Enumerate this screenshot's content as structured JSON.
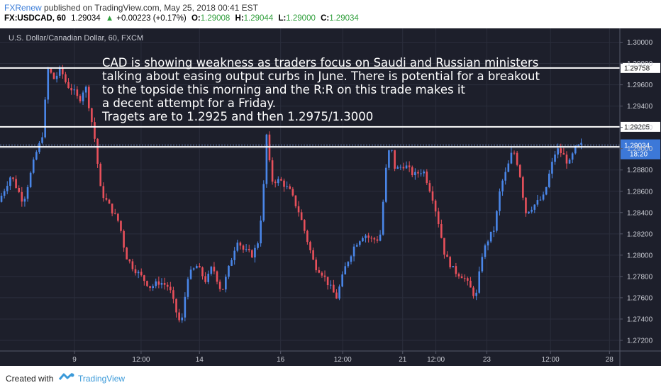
{
  "header": {
    "author": "FXRenew",
    "published_text": "published on TradingView.com, May 25, 2018 00:41 EST",
    "symbol_tf": "FX:USDCAD, 60",
    "last": "1.29034",
    "arrow": "▲",
    "change": "+0.00223 (+0.17%)",
    "o_label": "O:",
    "o_val": "1.29008",
    "h_label": "H:",
    "h_val": "1.29044",
    "l_label": "L:",
    "l_val": "1.29000",
    "c_label": "C:",
    "c_val": "1.29034"
  },
  "footer": {
    "created_with": "Created with",
    "brand": "TradingView"
  },
  "chart_data": {
    "type": "candlestick",
    "title": "U.S. Dollar/Canadian Dollar, 60, FXCM",
    "ylim": [
      1.271,
      1.3013
    ],
    "ytick_values": [
      1.272,
      1.274,
      1.276,
      1.278,
      1.28,
      1.282,
      1.284,
      1.286,
      1.288,
      1.29,
      1.292,
      1.294,
      1.296,
      1.298,
      1.3
    ],
    "ytick_labels": [
      "1.27200",
      "1.27400",
      "1.27600",
      "1.27800",
      "1.28000",
      "1.28200",
      "1.28400",
      "1.28600",
      "1.28800",
      "1.29000",
      "1.29200",
      "1.29400",
      "1.29600",
      "1.29800",
      "1.30000"
    ],
    "x_ticks": [
      {
        "label": "9",
        "t": 0.1202
      },
      {
        "label": "12:00",
        "t": 0.2276
      },
      {
        "label": "14",
        "t": 0.3218
      },
      {
        "label": "16",
        "t": 0.4527
      },
      {
        "label": "12:00",
        "t": 0.5529
      },
      {
        "label": "21",
        "t": 0.6496
      },
      {
        "label": "12:00",
        "t": 0.7032
      },
      {
        "label": "23",
        "t": 0.7854
      },
      {
        "label": "12:00",
        "t": 0.8881
      },
      {
        "label": "28",
        "t": 0.9832
      }
    ],
    "price_path": [
      [
        0.0,
        1.285
      ],
      [
        0.02,
        1.2875
      ],
      [
        0.04,
        1.285
      ],
      [
        0.06,
        1.2895
      ],
      [
        0.07,
        1.291
      ],
      [
        0.08,
        1.2975
      ],
      [
        0.09,
        1.2965
      ],
      [
        0.1,
        1.2975
      ],
      [
        0.11,
        1.296
      ],
      [
        0.12,
        1.2955
      ],
      [
        0.13,
        1.2945
      ],
      [
        0.14,
        1.296
      ],
      [
        0.155,
        1.291
      ],
      [
        0.165,
        1.286
      ],
      [
        0.18,
        1.2845
      ],
      [
        0.195,
        1.283
      ],
      [
        0.205,
        1.28
      ],
      [
        0.215,
        1.279
      ],
      [
        0.23,
        1.278
      ],
      [
        0.245,
        1.277
      ],
      [
        0.26,
        1.2775
      ],
      [
        0.275,
        1.277
      ],
      [
        0.29,
        1.274
      ],
      [
        0.295,
        1.2735
      ],
      [
        0.305,
        1.278
      ],
      [
        0.32,
        1.279
      ],
      [
        0.335,
        1.2775
      ],
      [
        0.345,
        1.279
      ],
      [
        0.36,
        1.2765
      ],
      [
        0.375,
        1.2795
      ],
      [
        0.385,
        1.2815
      ],
      [
        0.395,
        1.2805
      ],
      [
        0.41,
        1.28
      ],
      [
        0.42,
        1.2815
      ],
      [
        0.43,
        1.288
      ],
      [
        0.432,
        1.2915
      ],
      [
        0.44,
        1.287
      ],
      [
        0.455,
        1.287
      ],
      [
        0.47,
        1.286
      ],
      [
        0.485,
        1.284
      ],
      [
        0.5,
        1.281
      ],
      [
        0.51,
        1.279
      ],
      [
        0.52,
        1.2785
      ],
      [
        0.535,
        1.277
      ],
      [
        0.545,
        1.276
      ],
      [
        0.56,
        1.279
      ],
      [
        0.575,
        1.281
      ],
      [
        0.59,
        1.282
      ],
      [
        0.6,
        1.2815
      ],
      [
        0.615,
        1.2815
      ],
      [
        0.625,
        1.288
      ],
      [
        0.632,
        1.2905
      ],
      [
        0.64,
        1.288
      ],
      [
        0.655,
        1.2885
      ],
      [
        0.67,
        1.2875
      ],
      [
        0.685,
        1.288
      ],
      [
        0.7,
        1.2855
      ],
      [
        0.71,
        1.283
      ],
      [
        0.72,
        1.28
      ],
      [
        0.735,
        1.2785
      ],
      [
        0.75,
        1.278
      ],
      [
        0.76,
        1.277
      ],
      [
        0.77,
        1.276
      ],
      [
        0.78,
        1.28
      ],
      [
        0.79,
        1.2815
      ],
      [
        0.8,
        1.2825
      ],
      [
        0.81,
        1.2865
      ],
      [
        0.82,
        1.288
      ],
      [
        0.83,
        1.29
      ],
      [
        0.84,
        1.288
      ],
      [
        0.85,
        1.284
      ],
      [
        0.86,
        1.2845
      ],
      [
        0.87,
        1.285
      ],
      [
        0.88,
        1.2855
      ],
      [
        0.89,
        1.288
      ],
      [
        0.9,
        1.29
      ],
      [
        0.91,
        1.2895
      ],
      [
        0.92,
        1.2885
      ],
      [
        0.93,
        1.29
      ],
      [
        0.94,
        1.29034
      ]
    ],
    "horizontal_lines": [
      {
        "price": 1.29758,
        "label": "1.29758"
      },
      {
        "price": 1.29205,
        "label": "1.29205"
      },
      {
        "price": 1.29017,
        "label": "1.29017"
      }
    ],
    "current_price": {
      "price": 1.29034,
      "label": "1.29034",
      "countdown": "18:20"
    },
    "annotation": [
      "CAD is showing weakness as traders focus on  Saudi and Russian ministers",
      "talking about easing output curbs in June. There is potential for a breakout",
      "to the topside this morning and the R:R on this trade makes it",
      "a decent attempt for a Friday.",
      "Tragets are to 1.2925 and then 1.2975/1.3000"
    ],
    "colors": {
      "background": "#1d1f2b",
      "up": "#4a86e8",
      "down": "#e8505b",
      "hline": "#ffffff",
      "price_label": "#3c78d8"
    }
  }
}
